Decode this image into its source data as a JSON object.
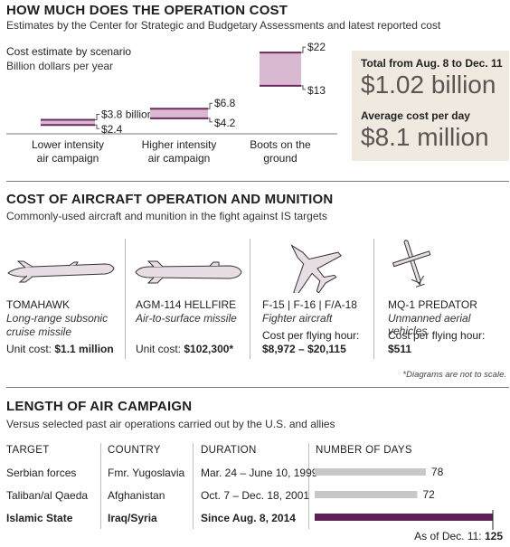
{
  "section1": {
    "title": "HOW MUCH DOES THE OPERATION COST",
    "subtitle": "Estimates by the Center for Strategic and Budgetary Assessments and latest reported cost",
    "chart_title": "Cost estimate by scenario",
    "chart_unit": "Billion dollars per year",
    "totals": {
      "period_label": "Total from Aug. 8 to Dec. 11",
      "period_value": "$1.02 billion",
      "daily_label": "Average cost per day",
      "daily_value": "$8.1 million"
    }
  },
  "chart_data": [
    {
      "type": "range-bar",
      "title": "Cost estimate by scenario",
      "ylabel": "Billion dollars per year",
      "ylim": [
        0,
        24
      ],
      "categories": [
        "Lower intensity air campaign",
        "Higher intensity air campaign",
        "Boots on the ground"
      ],
      "category_labels": [
        [
          "Lower intensity",
          "air campaign"
        ],
        [
          "Higher intensity",
          "air campaign"
        ],
        [
          "Boots on the",
          "ground"
        ]
      ],
      "low": [
        2.4,
        4.2,
        13
      ],
      "high": [
        3.8,
        6.8,
        22
      ],
      "low_labels": [
        "$2.4",
        "$4.2",
        "$13"
      ],
      "high_labels": [
        "$3.8 billion",
        "$6.8",
        "$22"
      ],
      "color": "#6b2a5e",
      "fill": "#d9b8d2"
    },
    {
      "type": "bar",
      "title": "LENGTH OF AIR CAMPAIGN",
      "categories": [
        "Serbian forces",
        "Taliban/al Qaeda",
        "Islamic State"
      ],
      "values": [
        78,
        72,
        125
      ],
      "value_labels": [
        "78",
        "72",
        "As of Dec. 11: 125"
      ],
      "xlim": [
        0,
        125
      ],
      "colors": [
        "#c8c8c8",
        "#c8c8c8",
        "#5d1f55"
      ]
    }
  ],
  "section2": {
    "title": "COST OF AIRCRAFT OPERATION AND MUNITION",
    "subtitle": "Commonly-used aircraft and munition in the fight against IS targets",
    "items": [
      {
        "icon": "tomahawk-missile-icon",
        "name": "TOMAHAWK",
        "desc": [
          "Long-range subsonic",
          "cruise missile"
        ],
        "cost_label": "Unit cost:",
        "cost": "$1.1 million"
      },
      {
        "icon": "hellfire-missile-icon",
        "name": "AGM-114 HELLFIRE",
        "desc": [
          "Air-to-surface missile"
        ],
        "cost_label": "Unit cost:",
        "cost": "$102,300*"
      },
      {
        "icon": "fighter-jet-icon",
        "name": "F-15 | F-16 | F/A-18",
        "desc": [
          "Fighter aircraft"
        ],
        "cost_label": "Cost per flying hour:",
        "cost": "$8,972 – $20,115"
      },
      {
        "icon": "predator-drone-icon",
        "name": "MQ-1 PREDATOR",
        "desc": [
          "Unmanned aerial vehicles"
        ],
        "cost_label": "Cost per flying hour:",
        "cost": "$511"
      }
    ],
    "note": "*Diagrams are not to scale."
  },
  "section3": {
    "title": "LENGTH OF AIR CAMPAIGN",
    "subtitle": "Versus selected past air operations carried out by the U.S. and allies",
    "headers": {
      "target": "TARGET",
      "country": "COUNTRY",
      "duration": "DURATION",
      "days": "NUMBER OF DAYS"
    },
    "rows": [
      {
        "target": "Serbian forces",
        "country": "Fmr. Yugoslavia",
        "duration": "Mar. 24 – June 10, 1999",
        "days": "78"
      },
      {
        "target": "Taliban/al Qaeda",
        "country": "Afghanistan",
        "duration": "Oct. 7 – Dec. 18, 2001",
        "days": "72"
      },
      {
        "target": "Islamic State",
        "country": "Iraq/Syria",
        "duration": "Since Aug. 8, 2014",
        "days": "125"
      }
    ],
    "asof_label": "As of Dec. 11:",
    "asof_value": "125"
  }
}
